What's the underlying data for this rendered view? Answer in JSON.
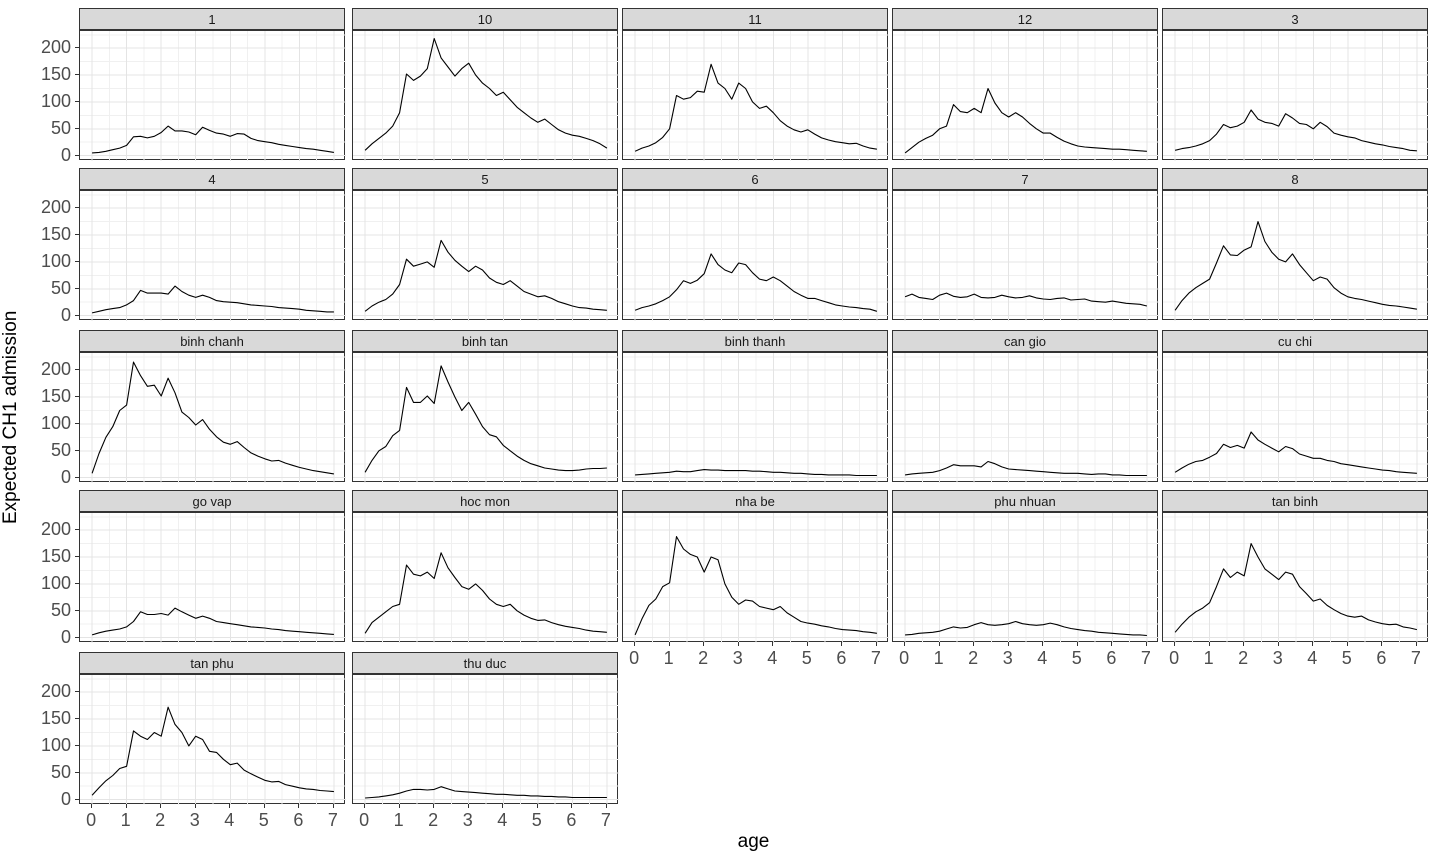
{
  "chart_data": {
    "type": "line",
    "title": "",
    "xlabel": "age",
    "ylabel": "Expected CH1 admission",
    "x_ticks": [
      0,
      1,
      2,
      3,
      4,
      5,
      6,
      7
    ],
    "y_ticks": [
      0,
      50,
      100,
      150,
      200
    ],
    "xlim": [
      -0.35,
      7.35
    ],
    "ylim": [
      -10,
      232
    ],
    "grid": "major+minor",
    "legend": "none",
    "line_color": "#000000",
    "strip_fill": "#d9d9d9",
    "panel_border_color": "#333333",
    "major_grid_color": "#e4e4e4",
    "minor_grid_color": "#f0f0f0",
    "x_start": 0,
    "x_step": 0.2,
    "facets": [
      {
        "label": "1",
        "y": [
          5,
          6,
          8,
          11,
          14,
          19,
          35,
          36,
          33,
          36,
          43,
          55,
          46,
          46,
          44,
          39,
          53,
          47,
          42,
          40,
          36,
          41,
          40,
          32,
          28,
          26,
          24,
          21,
          19,
          17,
          15,
          13,
          12,
          10,
          8,
          6
        ]
      },
      {
        "label": "10",
        "y": [
          10,
          22,
          32,
          42,
          55,
          80,
          152,
          140,
          148,
          162,
          218,
          182,
          165,
          148,
          162,
          172,
          150,
          135,
          125,
          112,
          118,
          104,
          90,
          80,
          70,
          62,
          68,
          58,
          48,
          42,
          38,
          36,
          32,
          28,
          22,
          14
        ]
      },
      {
        "label": "11",
        "y": [
          8,
          14,
          18,
          24,
          34,
          50,
          112,
          105,
          108,
          120,
          118,
          170,
          135,
          125,
          105,
          135,
          125,
          100,
          88,
          92,
          80,
          65,
          55,
          48,
          44,
          48,
          40,
          33,
          29,
          26,
          24,
          22,
          23,
          18,
          14,
          12
        ]
      },
      {
        "label": "12",
        "y": [
          5,
          15,
          25,
          32,
          38,
          50,
          55,
          95,
          82,
          80,
          88,
          80,
          125,
          98,
          80,
          72,
          80,
          72,
          60,
          50,
          42,
          42,
          34,
          27,
          22,
          18,
          16,
          15,
          14,
          13,
          12,
          12,
          11,
          10,
          9,
          8
        ]
      },
      {
        "label": "3",
        "y": [
          10,
          13,
          15,
          18,
          22,
          28,
          40,
          58,
          52,
          55,
          62,
          85,
          68,
          62,
          60,
          55,
          78,
          70,
          60,
          58,
          50,
          62,
          54,
          42,
          38,
          35,
          33,
          28,
          25,
          22,
          20,
          17,
          15,
          13,
          10,
          9
        ]
      },
      {
        "label": "4",
        "y": [
          5,
          8,
          11,
          13,
          15,
          20,
          28,
          47,
          42,
          42,
          42,
          40,
          55,
          45,
          38,
          34,
          38,
          34,
          28,
          26,
          25,
          24,
          22,
          20,
          19,
          18,
          17,
          15,
          14,
          13,
          12,
          10,
          9,
          8,
          7,
          7
        ]
      },
      {
        "label": "5",
        "y": [
          8,
          18,
          25,
          30,
          40,
          58,
          105,
          92,
          96,
          100,
          90,
          140,
          118,
          103,
          92,
          82,
          92,
          85,
          70,
          62,
          58,
          65,
          55,
          45,
          40,
          35,
          37,
          32,
          26,
          22,
          18,
          15,
          14,
          12,
          11,
          10
        ]
      },
      {
        "label": "6",
        "y": [
          10,
          15,
          18,
          22,
          28,
          35,
          48,
          65,
          60,
          66,
          78,
          115,
          95,
          85,
          80,
          98,
          95,
          80,
          68,
          65,
          72,
          65,
          55,
          45,
          38,
          32,
          32,
          28,
          24,
          20,
          18,
          16,
          15,
          13,
          12,
          8
        ]
      },
      {
        "label": "7",
        "y": [
          35,
          40,
          34,
          32,
          30,
          38,
          42,
          36,
          34,
          35,
          40,
          34,
          33,
          34,
          38,
          35,
          33,
          34,
          37,
          33,
          31,
          30,
          32,
          33,
          29,
          30,
          31,
          27,
          26,
          25,
          27,
          25,
          23,
          22,
          21,
          18
        ]
      },
      {
        "label": "8",
        "y": [
          10,
          28,
          42,
          52,
          60,
          68,
          98,
          130,
          113,
          112,
          122,
          128,
          175,
          138,
          118,
          105,
          100,
          115,
          95,
          80,
          65,
          72,
          68,
          52,
          42,
          35,
          32,
          30,
          27,
          24,
          21,
          19,
          18,
          16,
          14,
          12
        ]
      },
      {
        "label": "binh chanh",
        "y": [
          8,
          45,
          75,
          95,
          125,
          135,
          215,
          190,
          170,
          172,
          152,
          185,
          158,
          122,
          112,
          98,
          108,
          90,
          76,
          66,
          62,
          67,
          56,
          46,
          40,
          35,
          31,
          32,
          27,
          23,
          19,
          16,
          13,
          11,
          9,
          7
        ]
      },
      {
        "label": "binh tan",
        "y": [
          10,
          32,
          50,
          58,
          78,
          88,
          168,
          140,
          140,
          152,
          138,
          208,
          178,
          150,
          125,
          140,
          118,
          95,
          80,
          76,
          60,
          50,
          40,
          32,
          26,
          22,
          18,
          16,
          14,
          13,
          13,
          14,
          16,
          17,
          17,
          18
        ]
      },
      {
        "label": "binh thanh",
        "y": [
          5,
          6,
          7,
          8,
          9,
          10,
          12,
          11,
          11,
          13,
          15,
          14,
          14,
          13,
          13,
          13,
          13,
          12,
          12,
          11,
          10,
          10,
          9,
          8,
          8,
          7,
          6,
          6,
          5,
          5,
          5,
          5,
          4,
          4,
          4,
          4
        ]
      },
      {
        "label": "can gio",
        "y": [
          5,
          7,
          8,
          9,
          10,
          13,
          18,
          24,
          22,
          22,
          22,
          20,
          30,
          26,
          20,
          16,
          15,
          14,
          13,
          12,
          11,
          10,
          9,
          8,
          8,
          8,
          7,
          6,
          7,
          7,
          5,
          5,
          4,
          4,
          4,
          4
        ]
      },
      {
        "label": "cu chi",
        "y": [
          10,
          18,
          25,
          30,
          32,
          38,
          45,
          62,
          56,
          60,
          55,
          85,
          70,
          62,
          55,
          48,
          58,
          54,
          44,
          40,
          36,
          36,
          32,
          30,
          26,
          24,
          22,
          20,
          18,
          16,
          14,
          13,
          11,
          10,
          9,
          8
        ]
      },
      {
        "label": "go vap",
        "y": [
          5,
          9,
          12,
          14,
          16,
          20,
          30,
          48,
          43,
          43,
          45,
          42,
          55,
          48,
          42,
          36,
          40,
          36,
          30,
          28,
          26,
          24,
          22,
          20,
          19,
          18,
          16,
          15,
          13,
          12,
          11,
          10,
          9,
          8,
          7,
          6
        ]
      },
      {
        "label": "hoc mon",
        "y": [
          8,
          28,
          38,
          48,
          58,
          62,
          135,
          118,
          115,
          122,
          110,
          158,
          130,
          112,
          95,
          90,
          100,
          88,
          72,
          62,
          58,
          62,
          50,
          42,
          36,
          32,
          33,
          28,
          24,
          21,
          19,
          17,
          14,
          12,
          11,
          10
        ]
      },
      {
        "label": "nha be",
        "y": [
          5,
          35,
          60,
          72,
          95,
          102,
          188,
          165,
          155,
          150,
          122,
          150,
          145,
          100,
          75,
          62,
          70,
          68,
          58,
          55,
          52,
          58,
          46,
          38,
          30,
          27,
          25,
          22,
          20,
          17,
          15,
          14,
          13,
          11,
          10,
          8
        ]
      },
      {
        "label": "phu nhuan",
        "y": [
          5,
          6,
          8,
          9,
          10,
          12,
          16,
          20,
          18,
          19,
          24,
          28,
          24,
          23,
          24,
          26,
          30,
          26,
          24,
          23,
          24,
          27,
          24,
          20,
          17,
          15,
          13,
          12,
          10,
          9,
          8,
          7,
          6,
          5,
          5,
          4
        ]
      },
      {
        "label": "tan binh",
        "y": [
          10,
          25,
          38,
          48,
          55,
          65,
          95,
          128,
          112,
          122,
          115,
          175,
          150,
          128,
          118,
          108,
          122,
          118,
          95,
          82,
          68,
          72,
          60,
          52,
          45,
          40,
          38,
          40,
          33,
          29,
          26,
          24,
          25,
          20,
          18,
          15
        ]
      },
      {
        "label": "tan phu",
        "y": [
          8,
          22,
          35,
          45,
          58,
          62,
          128,
          118,
          112,
          125,
          118,
          172,
          140,
          125,
          100,
          118,
          112,
          90,
          88,
          75,
          65,
          68,
          55,
          48,
          42,
          36,
          33,
          34,
          28,
          25,
          22,
          20,
          19,
          17,
          16,
          15
        ]
      },
      {
        "label": "thu duc",
        "y": [
          3,
          4,
          5,
          7,
          9,
          12,
          16,
          19,
          19,
          18,
          19,
          24,
          20,
          16,
          15,
          14,
          13,
          12,
          11,
          10,
          10,
          9,
          8,
          8,
          7,
          7,
          6,
          6,
          5,
          5,
          4,
          4,
          4,
          4,
          4,
          4
        ]
      }
    ]
  }
}
